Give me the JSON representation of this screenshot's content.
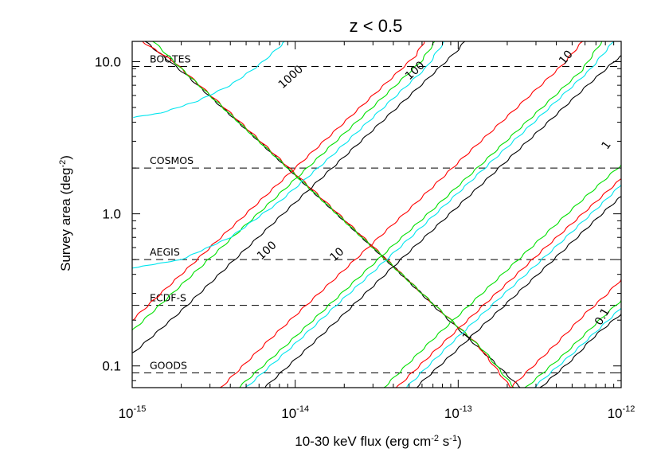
{
  "chart_data": {
    "type": "line",
    "title": "z < 0.5",
    "xlabel": "10-30 keV flux (erg cm",
    "xlabel_exp": "-2",
    "xlabel_tail": " s",
    "xlabel_exp2": "-1",
    "xlabel_close": ")",
    "ylabel": "Survey area (deg",
    "ylabel_exp": "-2",
    "ylabel_close": ")",
    "xscale": "log",
    "yscale": "log",
    "xlim": [
      1e-15,
      1e-12
    ],
    "ylim": [
      0.072,
      13.6
    ],
    "x_ticks": [
      {
        "value": 1e-15,
        "base": "10",
        "exp": "-15"
      },
      {
        "value": 1e-14,
        "base": "10",
        "exp": "-14"
      },
      {
        "value": 1e-13,
        "base": "10",
        "exp": "-13"
      },
      {
        "value": 1e-12,
        "base": "10",
        "exp": "-12"
      }
    ],
    "y_ticks": [
      {
        "value": 0.1,
        "label": "0.1"
      },
      {
        "value": 1.0,
        "label": "1.0"
      },
      {
        "value": 10.0,
        "label": "10.0"
      }
    ],
    "surveys": [
      {
        "name": "BOOTES",
        "area": 9.3
      },
      {
        "name": "COSMOS",
        "area": 2.0
      },
      {
        "name": "AEGIS",
        "area": 0.5
      },
      {
        "name": "ECDF-S",
        "area": 0.25
      },
      {
        "name": "GOODS",
        "area": 0.09
      }
    ],
    "colors": {
      "black": "#000000",
      "red": "#ff0000",
      "green": "#00e000",
      "cyan": "#00e5ee"
    },
    "contours": [
      {
        "label": "1000",
        "color": "#000000",
        "points": [
          [
            1.2e-15,
            13.6
          ],
          [
            2.2e-15,
            8.0
          ],
          [
            5e-15,
            3.6
          ],
          [
            1e-14,
            1.8
          ],
          [
            2e-14,
            0.9
          ],
          [
            4e-14,
            0.45
          ],
          [
            8e-14,
            0.22
          ],
          [
            1.6e-13,
            0.11
          ],
          [
            2.4e-13,
            0.072
          ]
        ]
      },
      {
        "label": "",
        "color": "#ff0000",
        "points": [
          [
            1.15e-15,
            13.6
          ],
          [
            1.8e-15,
            10.0
          ],
          [
            4e-15,
            4.6
          ],
          [
            8e-15,
            2.3
          ],
          [
            1.6e-14,
            1.15
          ],
          [
            3.2e-14,
            0.57
          ],
          [
            6.4e-14,
            0.28
          ],
          [
            1.3e-13,
            0.14
          ],
          [
            2.1e-13,
            0.072
          ]
        ]
      },
      {
        "label": "",
        "color": "#00e000",
        "points": [
          [
            1.35e-15,
            13.6
          ],
          [
            2e-15,
            9.0
          ],
          [
            4.5e-15,
            4.0
          ],
          [
            9e-15,
            2.0
          ],
          [
            1.8e-14,
            1.0
          ],
          [
            3.6e-14,
            0.5
          ],
          [
            7.2e-14,
            0.25
          ],
          [
            1.45e-13,
            0.125
          ],
          [
            2.2e-13,
            0.072
          ]
        ]
      },
      {
        "label": "",
        "color": "#00e5ee",
        "points": [
          [
            1e-15,
            4.3
          ],
          [
            1.5e-15,
            4.6
          ],
          [
            2.5e-15,
            5.5
          ],
          [
            4e-15,
            7.0
          ],
          [
            6e-15,
            9.5
          ],
          [
            8e-15,
            12.5
          ],
          [
            8.6e-15,
            13.6
          ]
        ]
      },
      {
        "label": "100",
        "color": "#000000",
        "points": [
          [
            1e-15,
            0.12
          ],
          [
            2e-15,
            0.23
          ],
          [
            4e-15,
            0.47
          ],
          [
            8e-15,
            0.95
          ],
          [
            1.6e-14,
            1.9
          ],
          [
            3.2e-14,
            3.8
          ],
          [
            6.4e-14,
            7.6
          ],
          [
            1e-13,
            12.0
          ],
          [
            1.1e-13,
            13.6
          ]
        ]
      },
      {
        "label": "",
        "color": "#ff0000",
        "points": [
          [
            1e-15,
            0.2
          ],
          [
            2e-15,
            0.4
          ],
          [
            4e-15,
            0.8
          ],
          [
            8e-15,
            1.6
          ],
          [
            1.6e-14,
            3.2
          ],
          [
            3.2e-14,
            6.4
          ],
          [
            5.5e-14,
            11.0
          ],
          [
            6.2e-14,
            13.6
          ]
        ]
      },
      {
        "label": "",
        "color": "#00e000",
        "points": [
          [
            1e-15,
            0.17
          ],
          [
            2e-15,
            0.34
          ],
          [
            4e-15,
            0.68
          ],
          [
            8e-15,
            1.35
          ],
          [
            1.6e-14,
            2.7
          ],
          [
            3.2e-14,
            5.4
          ],
          [
            6e-14,
            10.2
          ],
          [
            7.2e-14,
            13.6
          ]
        ]
      },
      {
        "label": "",
        "color": "#00e5ee",
        "points": [
          [
            1e-15,
            0.44
          ],
          [
            2e-15,
            0.5
          ],
          [
            4e-15,
            0.7
          ],
          [
            8e-15,
            1.2
          ],
          [
            1.6e-14,
            2.3
          ],
          [
            3.2e-14,
            4.6
          ],
          [
            6.4e-14,
            9.2
          ],
          [
            8.2e-14,
            13.6
          ]
        ]
      },
      {
        "label": "10",
        "color": "#000000",
        "points": [
          [
            6.5e-15,
            0.072
          ],
          [
            1e-14,
            0.11
          ],
          [
            2e-14,
            0.22
          ],
          [
            4e-14,
            0.45
          ],
          [
            8e-14,
            0.9
          ],
          [
            1.6e-13,
            1.8
          ],
          [
            3.2e-13,
            3.6
          ],
          [
            6.4e-13,
            7.2
          ],
          [
            1e-12,
            11.0
          ]
        ]
      },
      {
        "label": "",
        "color": "#ff0000",
        "points": [
          [
            3.5e-15,
            0.072
          ],
          [
            7e-15,
            0.15
          ],
          [
            1.4e-14,
            0.3
          ],
          [
            2.8e-14,
            0.6
          ],
          [
            5.6e-14,
            1.2
          ],
          [
            1.1e-13,
            2.4
          ],
          [
            2.2e-13,
            4.8
          ],
          [
            4.4e-13,
            9.6
          ],
          [
            5.8e-13,
            13.6
          ]
        ]
      },
      {
        "label": "",
        "color": "#00e000",
        "points": [
          [
            4.5e-15,
            0.072
          ],
          [
            9e-15,
            0.14
          ],
          [
            1.8e-14,
            0.28
          ],
          [
            3.6e-14,
            0.56
          ],
          [
            7.2e-14,
            1.1
          ],
          [
            1.44e-13,
            2.2
          ],
          [
            2.88e-13,
            4.4
          ],
          [
            5.76e-13,
            8.8
          ],
          [
            7.6e-13,
            13.6
          ]
        ]
      },
      {
        "label": "",
        "color": "#00e5ee",
        "points": [
          [
            5e-15,
            0.072
          ],
          [
            1e-14,
            0.14
          ],
          [
            2e-14,
            0.28
          ],
          [
            4e-14,
            0.55
          ],
          [
            8e-14,
            1.1
          ],
          [
            1.6e-13,
            2.2
          ],
          [
            3.2e-13,
            4.4
          ],
          [
            6.4e-13,
            8.8
          ],
          [
            9e-13,
            13.6
          ]
        ]
      },
      {
        "label": "1",
        "color": "#000000",
        "points": [
          [
            5.5e-14,
            0.072
          ],
          [
            1e-13,
            0.13
          ],
          [
            2e-13,
            0.26
          ],
          [
            4e-13,
            0.52
          ],
          [
            8e-13,
            1.05
          ],
          [
            1e-12,
            1.3
          ]
        ]
      },
      {
        "label": "",
        "color": "#ff0000",
        "points": [
          [
            4.2e-14,
            0.072
          ],
          [
            8e-14,
            0.14
          ],
          [
            1.6e-13,
            0.28
          ],
          [
            3.2e-13,
            0.56
          ],
          [
            6.4e-13,
            1.1
          ],
          [
            1e-12,
            1.7
          ]
        ]
      },
      {
        "label": "",
        "color": "#00e000",
        "points": [
          [
            3.5e-14,
            0.072
          ],
          [
            7e-14,
            0.15
          ],
          [
            1.4e-13,
            0.3
          ],
          [
            2.8e-13,
            0.6
          ],
          [
            5.6e-13,
            1.2
          ],
          [
            1e-12,
            2.1
          ]
        ]
      },
      {
        "label": "",
        "color": "#00e5ee",
        "points": [
          [
            4.8e-14,
            0.072
          ],
          [
            9e-14,
            0.14
          ],
          [
            1.8e-13,
            0.28
          ],
          [
            3.6e-13,
            0.55
          ],
          [
            7.2e-13,
            1.1
          ],
          [
            1e-12,
            1.55
          ]
        ]
      },
      {
        "label": "0.1",
        "color": "#000000",
        "points": [
          [
            3.2e-13,
            0.072
          ],
          [
            5e-13,
            0.11
          ],
          [
            7e-13,
            0.16
          ],
          [
            1e-12,
            0.22
          ]
        ]
      },
      {
        "label": "",
        "color": "#ff0000",
        "points": [
          [
            2.1e-13,
            0.072
          ],
          [
            4e-13,
            0.14
          ],
          [
            6e-13,
            0.22
          ],
          [
            8e-13,
            0.29
          ],
          [
            1e-12,
            0.37
          ]
        ]
      },
      {
        "label": "",
        "color": "#00e000",
        "points": [
          [
            2.6e-13,
            0.072
          ],
          [
            4.5e-13,
            0.12
          ],
          [
            7e-13,
            0.19
          ],
          [
            1e-12,
            0.27
          ]
        ]
      },
      {
        "label": "",
        "color": "#00e5ee",
        "points": [
          [
            2.9e-13,
            0.072
          ],
          [
            5e-13,
            0.12
          ],
          [
            7.5e-13,
            0.18
          ],
          [
            1e-12,
            0.24
          ]
        ]
      }
    ]
  }
}
